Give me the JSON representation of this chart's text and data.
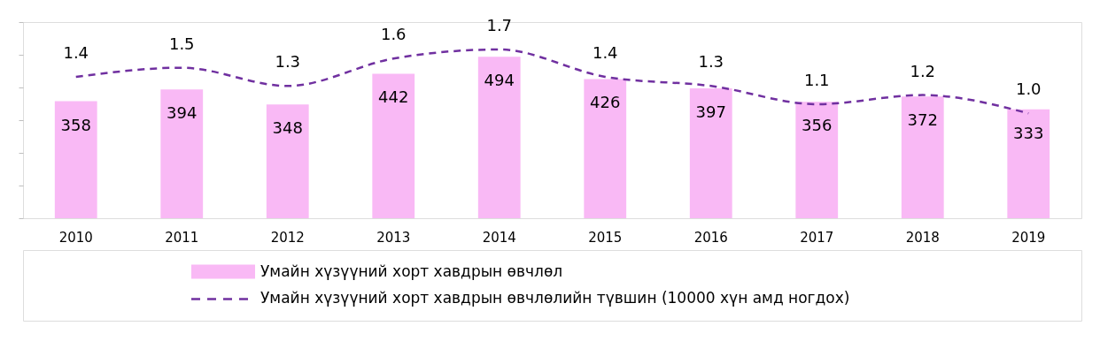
{
  "chart_data": {
    "type": "bar",
    "categories": [
      "2010",
      "2011",
      "2012",
      "2013",
      "2014",
      "2015",
      "2016",
      "2017",
      "2018",
      "2019"
    ],
    "series": [
      {
        "name": "Умайн хүзүүний хорт хавдрын өвчлөл",
        "color": "#f9b9f5",
        "values": [
          358,
          394,
          348,
          442,
          494,
          426,
          397,
          356,
          372,
          333
        ],
        "value_labels": [
          "358",
          "394",
          "348",
          "442",
          "494",
          "426",
          "397",
          "356",
          "372",
          "333"
        ]
      },
      {
        "name": "Умайн хүзүүний хорт хавдрын өвчлөлийн түвшин (10000 хүн амд ногдох)",
        "type": "line",
        "axis": "y2",
        "color": "#7030a0",
        "line_style": "dashed",
        "values": [
          1.4,
          1.5,
          1.3,
          1.6,
          1.7,
          1.4,
          1.3,
          1.1,
          1.2,
          1.0
        ],
        "value_labels": [
          "1.4",
          "1.5",
          "1.3",
          "1.6",
          "1.7",
          "1.4",
          "1.3",
          "1.1",
          "1.2",
          "1.0"
        ]
      }
    ],
    "ylim": [
      0,
      600
    ],
    "yticks": [
      {
        "value": 0,
        "label": null
      },
      {
        "value": 100,
        "label": null
      },
      {
        "value": 200,
        "label": null
      },
      {
        "value": 300,
        "label": null
      },
      {
        "value": 400,
        "label": null
      },
      {
        "value": 500,
        "label": null
      },
      {
        "value": 600,
        "label": null
      }
    ],
    "y2lim": [
      -0.15,
      2.0
    ],
    "tick_labels": "x",
    "grid": false,
    "legend": "bottom"
  }
}
